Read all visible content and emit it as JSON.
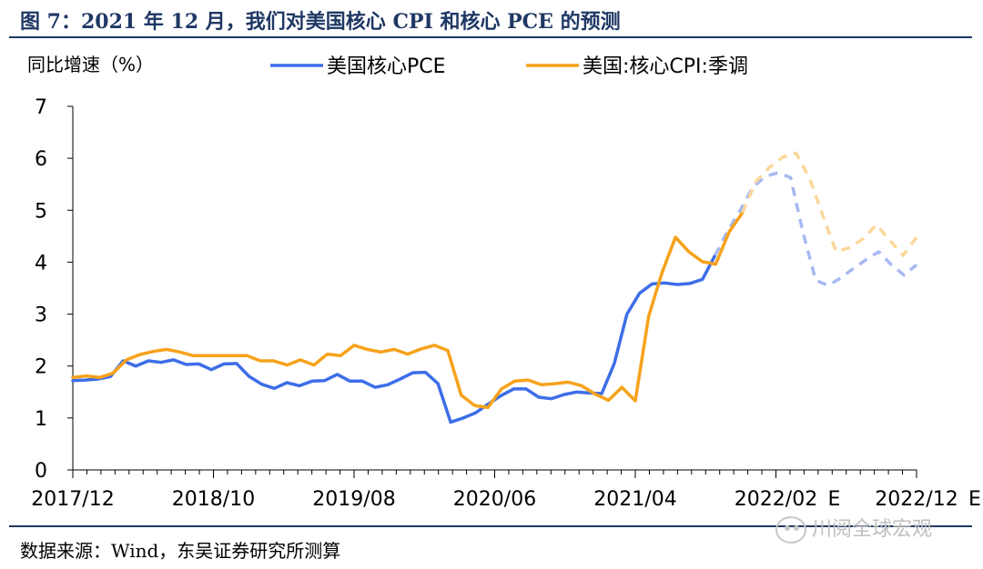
{
  "header": {
    "title": "图 7：2021 年 12 月，我们对美国核心 CPI 和核心 PCE 的预测"
  },
  "footer": {
    "source": "数据来源：Wind，东吴证券研究所测算",
    "watermark": "川阅全球宏观"
  },
  "chart_data": {
    "type": "line",
    "ylabel": "同比增速（%）",
    "ylim": [
      0,
      7
    ],
    "yticks": [
      0,
      1,
      2,
      3,
      4,
      5,
      6,
      7
    ],
    "xlim": [
      0,
      60
    ],
    "xtick_labels": [
      "2017/12",
      "2018/10",
      "2019/08",
      "2020/06",
      "2021/04",
      "2022/02",
      "2022/12"
    ],
    "xtick_positions": [
      0,
      10,
      20,
      30,
      40,
      50,
      60
    ],
    "forecast_marker": "E",
    "forecast_start": 47,
    "grid": false,
    "legend": "top",
    "colors": {
      "pce": "#3d6ee8",
      "cpi": "#f7a21b",
      "pce_forecast": "#a7b9f3",
      "cpi_forecast": "#fbd79a"
    },
    "series": [
      {
        "name": "美国核心PCE",
        "values": [
          1.72,
          1.73,
          1.75,
          1.8,
          2.1,
          2.0,
          2.1,
          2.07,
          2.12,
          2.03,
          2.04,
          1.93,
          2.04,
          2.05,
          1.8,
          1.65,
          1.57,
          1.68,
          1.62,
          1.71,
          1.72,
          1.84,
          1.71,
          1.71,
          1.59,
          1.64,
          1.75,
          1.87,
          1.88,
          1.66,
          0.92,
          1.0,
          1.1,
          1.27,
          1.43,
          1.56,
          1.56,
          1.4,
          1.37,
          1.45,
          1.5,
          1.48,
          1.47,
          2.05,
          3.0,
          3.4,
          3.58,
          3.6,
          3.57,
          3.59,
          3.67,
          4.13,
          4.6,
          5.0,
          5.45,
          5.65,
          5.72,
          5.63,
          4.55,
          3.65,
          3.55,
          3.7,
          3.88,
          4.05,
          4.2,
          3.95,
          3.75,
          3.95
        ],
        "forecast_values": [
          4.13,
          4.6,
          5.0,
          5.45,
          5.65,
          5.72,
          5.63,
          4.55,
          3.65,
          3.55,
          3.7,
          3.88,
          4.05,
          4.2,
          3.95,
          3.75,
          3.95
        ]
      },
      {
        "name": "美国:核心CPI:季调",
        "values": [
          1.78,
          1.81,
          1.78,
          1.86,
          2.12,
          2.22,
          2.28,
          2.32,
          2.27,
          2.2,
          2.2,
          2.2,
          2.2,
          2.2,
          2.1,
          2.1,
          2.02,
          2.12,
          2.02,
          2.23,
          2.2,
          2.4,
          2.32,
          2.27,
          2.32,
          2.23,
          2.33,
          2.4,
          2.3,
          1.44,
          1.24,
          1.2,
          1.56,
          1.71,
          1.73,
          1.64,
          1.66,
          1.69,
          1.62,
          1.46,
          1.34,
          1.59,
          1.33,
          2.96,
          3.8,
          4.48,
          4.2,
          4.01,
          3.96,
          4.58,
          4.95,
          5.55,
          5.82,
          6.02,
          6.1,
          5.62,
          4.9,
          4.2,
          4.28,
          4.45,
          4.72,
          4.42,
          4.13,
          4.48
        ],
        "forecast_values": [
          4.95,
          5.55,
          5.82,
          6.02,
          6.1,
          5.62,
          4.9,
          4.2,
          4.28,
          4.45,
          4.72,
          4.42,
          4.13,
          4.48
        ]
      }
    ]
  }
}
